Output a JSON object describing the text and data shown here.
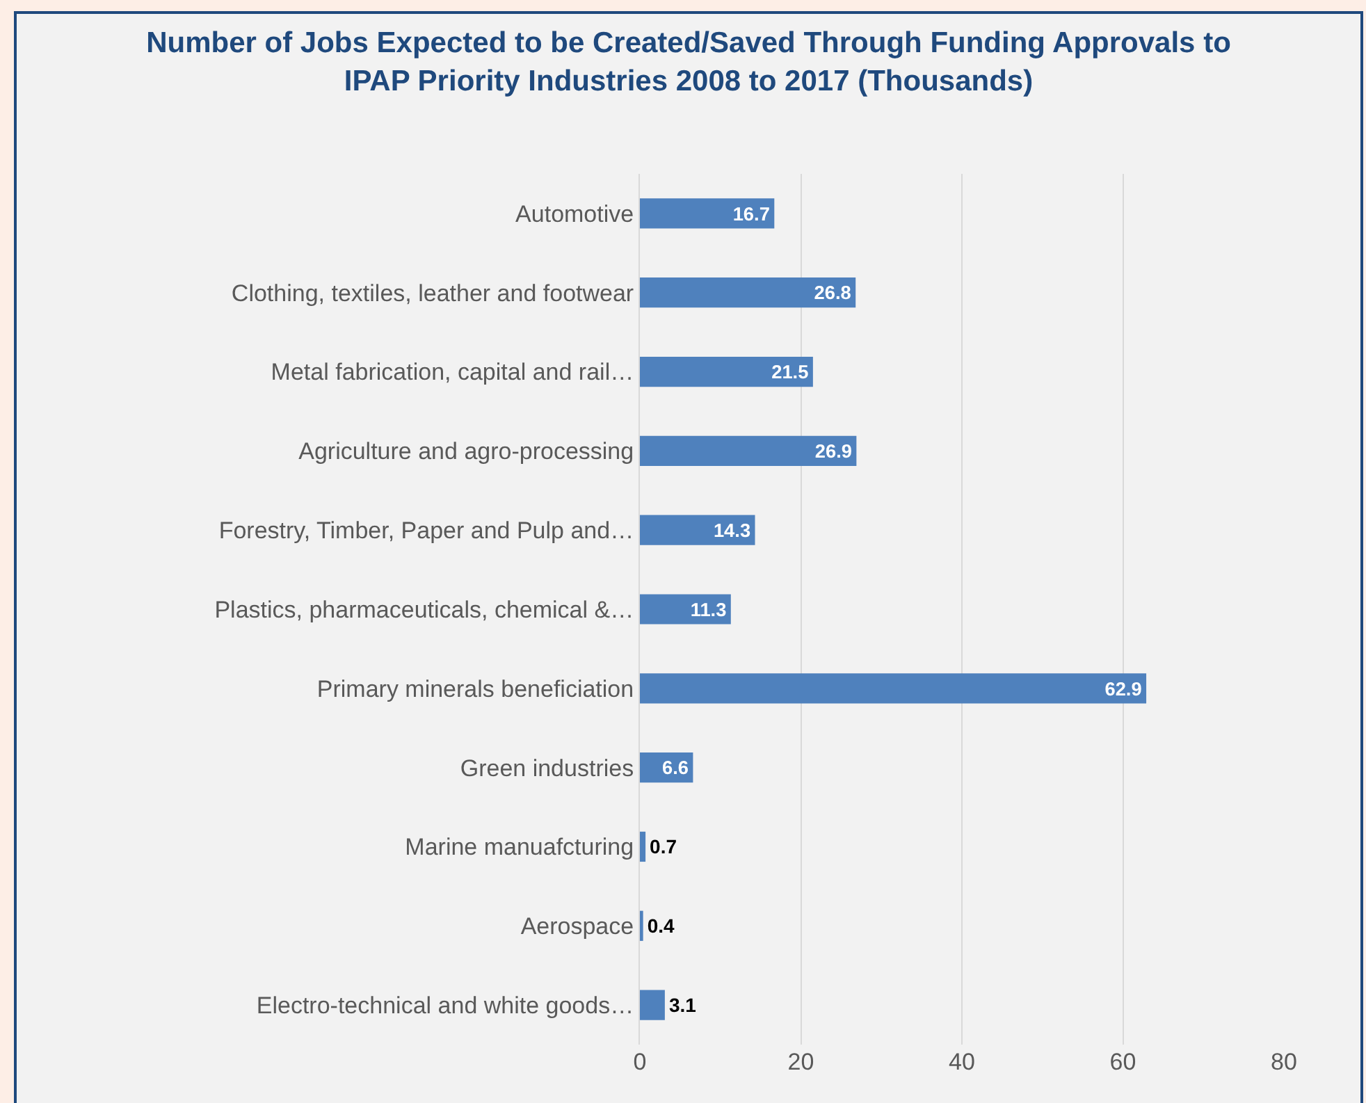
{
  "chart_data": {
    "type": "bar",
    "orientation": "horizontal",
    "title": "Number of Jobs Expected to be Created/Saved Through Funding Approvals to IPAP Priority Industries 2008 to 2017 (Thousands)",
    "categories": [
      "Automotive",
      "Clothing, textiles, leather and footwear",
      "Metal fabrication, capital and rail…",
      "Agriculture and agro-processing",
      "Forestry, Timber, Paper and Pulp and…",
      "Plastics, pharmaceuticals, chemical &…",
      "Primary minerals beneficiation",
      "Green industries",
      "Marine manuafcturing",
      "Aerospace",
      "Electro-technical and white goods…"
    ],
    "values": [
      16.7,
      26.8,
      21.5,
      26.9,
      14.3,
      11.3,
      62.9,
      6.6,
      0.7,
      0.4,
      3.1
    ],
    "color": "#4f81bd",
    "xlim": [
      0,
      80
    ],
    "xticks": [
      0,
      20,
      40,
      60,
      80
    ],
    "grid": "x",
    "data_labels": true
  }
}
